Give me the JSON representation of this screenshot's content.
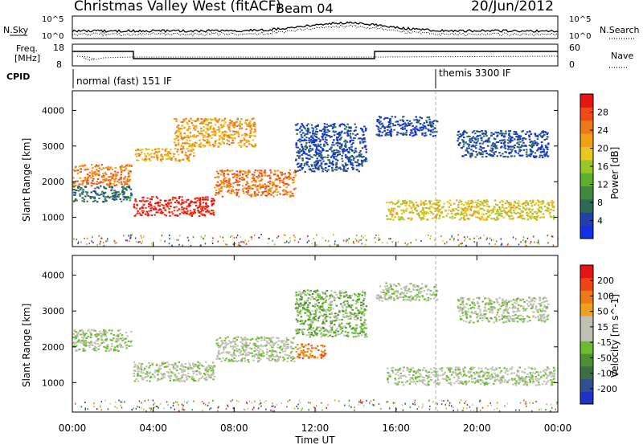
{
  "header": {
    "station": "Christmas Valley West (fitACF)",
    "beam": "Beam 04",
    "date": "20/Jun/2012"
  },
  "noise_panel": {
    "left_label": "N.Sky",
    "left_ticks": [
      "10^5",
      "10^0"
    ],
    "right_ticks": [
      "10^5",
      "10^0"
    ],
    "right_label": "N.Search"
  },
  "freq_panel": {
    "left_label_1": "Freq.",
    "left_label_2": "[MHz]",
    "left_ticks": [
      "18",
      "8"
    ],
    "right_ticks": [
      "60",
      "0"
    ],
    "right_label": "Nave"
  },
  "cpid_panel": {
    "label": "CPID",
    "mode_1": "normal (fast) 151 IF",
    "mode_2": "themis 3300 IF"
  },
  "colors": {
    "axis": "#000000",
    "power_scale": [
      "#1030e8",
      "#2040b0",
      "#2e6a54",
      "#3e8a3e",
      "#5eb02a",
      "#98c828",
      "#e8c820",
      "#f0a018",
      "#f07818",
      "#f04a18",
      "#e81414"
    ],
    "velocity_scale": [
      "#2030c8",
      "#2e5090",
      "#3a7040",
      "#4c9030",
      "#6cbc30",
      "#c0c0b4",
      "#c0c0b4",
      "#f0a020",
      "#f07818",
      "#f04418",
      "#e81414"
    ]
  },
  "chart_data": [
    {
      "type": "heatmap",
      "name": "power",
      "ylabel": "Slant Range [km]",
      "yticks": [
        "1000",
        "2000",
        "3000",
        "4000"
      ],
      "ylim": [
        180,
        4550
      ],
      "colorbar_label": "Power [dB]",
      "colorbar_ticks": [
        "28",
        "24",
        "20",
        "16",
        "12",
        "8",
        "4"
      ],
      "colorbar_range": [
        0,
        32
      ],
      "echo_bands": [
        {
          "t0": 0.0,
          "t1": 2.9,
          "r0": 1900,
          "r1": 2500,
          "c": 8
        },
        {
          "t0": 0.0,
          "t1": 2.9,
          "r0": 1450,
          "r1": 1900,
          "c": 2
        },
        {
          "t0": 3.0,
          "t1": 7.0,
          "r0": 1050,
          "r1": 1600,
          "c": 10
        },
        {
          "t0": 7.0,
          "t1": 11.0,
          "r0": 1600,
          "r1": 2350,
          "c": 8
        },
        {
          "t0": 3.0,
          "t1": 6.0,
          "r0": 2600,
          "r1": 2950,
          "c": 7
        },
        {
          "t0": 5.0,
          "t1": 9.0,
          "r0": 3000,
          "r1": 3800,
          "c": 7
        },
        {
          "t0": 11.0,
          "t1": 14.5,
          "r0": 2300,
          "r1": 3650,
          "c": 1
        },
        {
          "t0": 15.5,
          "t1": 23.8,
          "r0": 950,
          "r1": 1500,
          "c": 6
        },
        {
          "t0": 15.0,
          "t1": 18.0,
          "r0": 3300,
          "r1": 3850,
          "c": 1
        },
        {
          "t0": 19.0,
          "t1": 23.5,
          "r0": 2700,
          "r1": 3450,
          "c": 1
        }
      ]
    },
    {
      "type": "heatmap",
      "name": "velocity",
      "ylabel": "Slant Range [km]",
      "yticks": [
        "1000",
        "2000",
        "3000",
        "4000"
      ],
      "ylim": [
        180,
        4550
      ],
      "colorbar_label": "Velocity [m s^-1]",
      "colorbar_ticks": [
        "200",
        "100",
        "50",
        "15",
        "-15",
        "-50",
        "-100",
        "-200"
      ],
      "xlabel": "Time UT",
      "xticks": [
        "00:00",
        "04:00",
        "08:00",
        "12:00",
        "16:00",
        "20:00",
        "00:00"
      ],
      "xlim": [
        0,
        24
      ],
      "echo_bands": [
        {
          "t0": 0.0,
          "t1": 2.9,
          "r0": 1900,
          "r1": 2500,
          "c": 5
        },
        {
          "t0": 3.0,
          "t1": 7.0,
          "r0": 1050,
          "r1": 1600,
          "c": 5
        },
        {
          "t0": 7.0,
          "t1": 11.0,
          "r0": 1600,
          "r1": 2300,
          "c": 5
        },
        {
          "t0": 11.0,
          "t1": 12.5,
          "r0": 1700,
          "r1": 2100,
          "c": 8
        },
        {
          "t0": 11.0,
          "t1": 14.5,
          "r0": 2300,
          "r1": 3600,
          "c": 4
        },
        {
          "t0": 15.5,
          "t1": 23.8,
          "r0": 950,
          "r1": 1450,
          "c": 5
        },
        {
          "t0": 15.0,
          "t1": 18.0,
          "r0": 3300,
          "r1": 3800,
          "c": 5
        },
        {
          "t0": 19.0,
          "t1": 23.5,
          "r0": 2700,
          "r1": 3400,
          "c": 5
        }
      ]
    }
  ]
}
